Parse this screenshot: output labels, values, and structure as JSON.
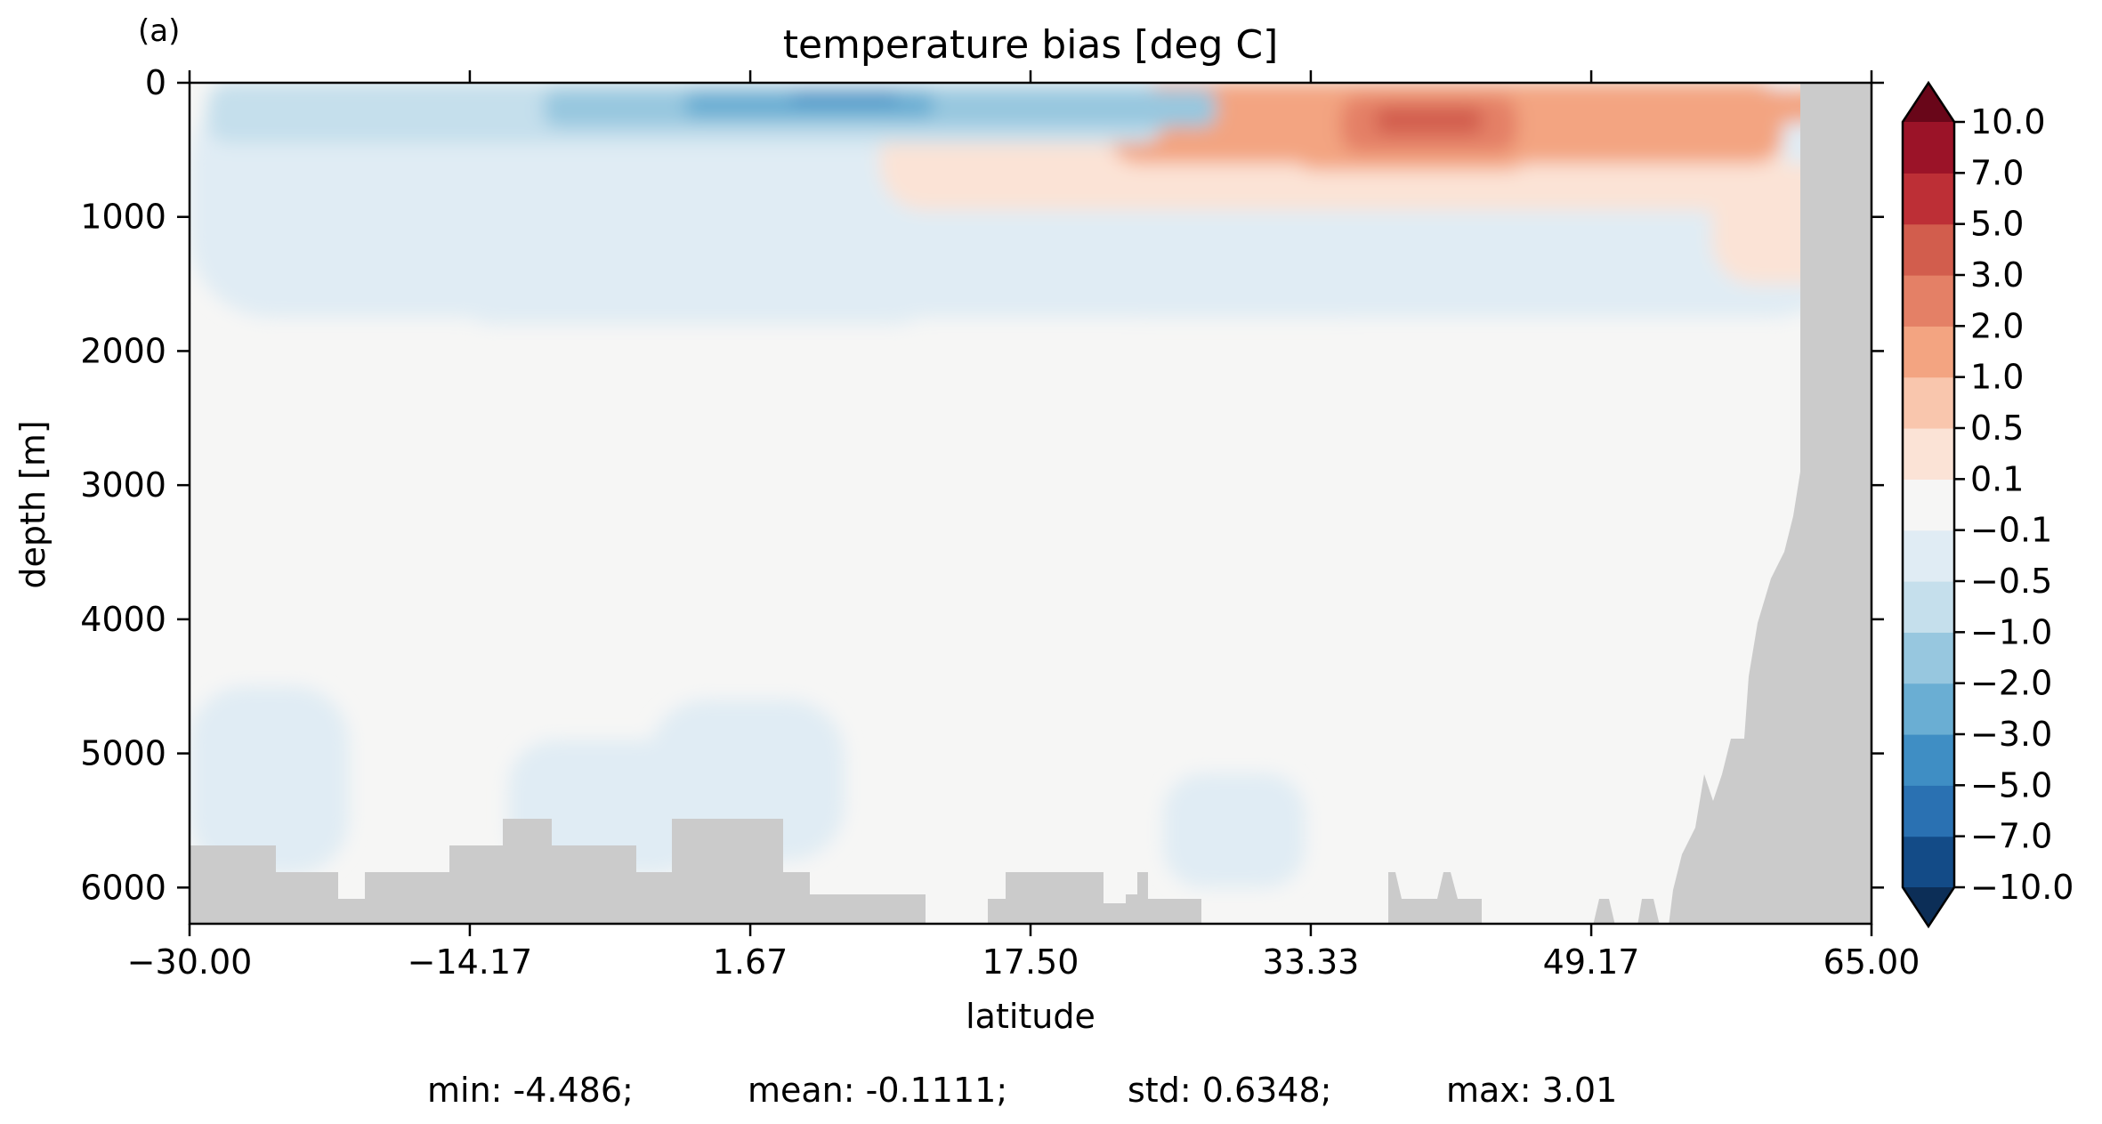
{
  "chart_data": {
    "type": "heatmap",
    "panel_label": "(a)",
    "title": "temperature bias [deg C]",
    "xlabel": "latitude",
    "ylabel": "depth [m]",
    "xlim": [
      -30,
      65
    ],
    "ylim": [
      6270,
      0
    ],
    "x_ticks": [
      -30,
      -14.17,
      1.67,
      17.5,
      33.33,
      49.17,
      65
    ],
    "x_tick_labels": [
      "−30.00",
      "−14.17",
      "1.67",
      "17.50",
      "33.33",
      "49.17",
      "65.00"
    ],
    "y_ticks": [
      0,
      1000,
      2000,
      3000,
      4000,
      5000,
      6000
    ],
    "y_tick_labels": [
      "0",
      "1000",
      "2000",
      "3000",
      "4000",
      "5000",
      "6000"
    ],
    "colorbar": {
      "levels": [
        -10,
        -7,
        -5,
        -3,
        -2,
        -1,
        -0.5,
        -0.1,
        0.1,
        0.5,
        1,
        2,
        3,
        5,
        7,
        10
      ],
      "level_labels": [
        "−10.0",
        "−7.0",
        "−5.0",
        "−3.0",
        "−2.0",
        "−1.0",
        "−0.5",
        "−0.1",
        "0.1",
        "0.5",
        "1.0",
        "2.0",
        "3.0",
        "5.0",
        "7.0",
        "10.0"
      ],
      "colors": [
        "#134b87",
        "#2a71b2",
        "#3f8ec4",
        "#6aaed3",
        "#97c7df",
        "#c5dfec",
        "#e0ecf4",
        "#f6f6f5",
        "#fbe3d6",
        "#f9c6ad",
        "#f3a481",
        "#e48066",
        "#d25d4d",
        "#bd2f36",
        "#9b1328"
      ],
      "under_color": "#0c2e57",
      "over_color": "#690619",
      "extend": "both"
    },
    "land_color": "#cbcbcb",
    "anomalies": [
      {
        "lat": [
          -30,
          64
        ],
        "depth": [
          0,
          1750
        ],
        "value": -0.3
      },
      {
        "lat": [
          9,
          60
        ],
        "depth": [
          0,
          950
        ],
        "value": 0.3
      },
      {
        "lat": [
          22,
          60
        ],
        "depth": [
          0,
          600
        ],
        "value": 1.0
      },
      {
        "lat": [
          56,
          64
        ],
        "depth": [
          600,
          1500
        ],
        "value": 0.3
      },
      {
        "lat": [
          -29,
          25
        ],
        "depth": [
          0,
          450
        ],
        "value": -0.8
      },
      {
        "lat": [
          -10,
          28
        ],
        "depth": [
          50,
          330
        ],
        "value": -1.5
      },
      {
        "lat": [
          -2,
          12
        ],
        "depth": [
          60,
          260
        ],
        "value": -2.5
      },
      {
        "lat": [
          4,
          10
        ],
        "depth": [
          70,
          150
        ],
        "value": -3.5
      },
      {
        "lat": [
          18,
          26
        ],
        "depth": [
          200,
          300
        ],
        "value": -1.5
      },
      {
        "lat": [
          32,
          46
        ],
        "depth": [
          30,
          650
        ],
        "value": 1.5
      },
      {
        "lat": [
          35,
          45
        ],
        "depth": [
          100,
          520
        ],
        "value": 2.5
      },
      {
        "lat": [
          37,
          43
        ],
        "depth": [
          180,
          380
        ],
        "value": 3.5
      },
      {
        "lat": [
          48,
          64
        ],
        "depth": [
          50,
          300
        ],
        "value": 1.5
      },
      {
        "lat": [
          -15,
          12
        ],
        "depth": [
          1000,
          1800
        ],
        "value": -0.3
      },
      {
        "lat": [
          22,
          37
        ],
        "depth": [
          1050,
          1750
        ],
        "value": -0.3
      },
      {
        "lat": [
          -30,
          -21
        ],
        "depth": [
          4500,
          5900
        ],
        "value": -0.3
      },
      {
        "lat": [
          -4,
          7
        ],
        "depth": [
          4600,
          5800
        ],
        "value": -0.3
      },
      {
        "lat": [
          -12,
          -1
        ],
        "depth": [
          4900,
          5900
        ],
        "value": -0.3
      },
      {
        "lat": [
          25,
          33
        ],
        "depth": [
          5150,
          6000
        ],
        "value": -0.3
      },
      {
        "lat": [
          60,
          64
        ],
        "depth": [
          4000,
          6200
        ],
        "value": -0.3
      }
    ]
  },
  "stats": {
    "min": "min: -4.486;",
    "mean": "mean: -0.1111;",
    "std": "std: 0.6348;",
    "max": "max: 3.01"
  }
}
